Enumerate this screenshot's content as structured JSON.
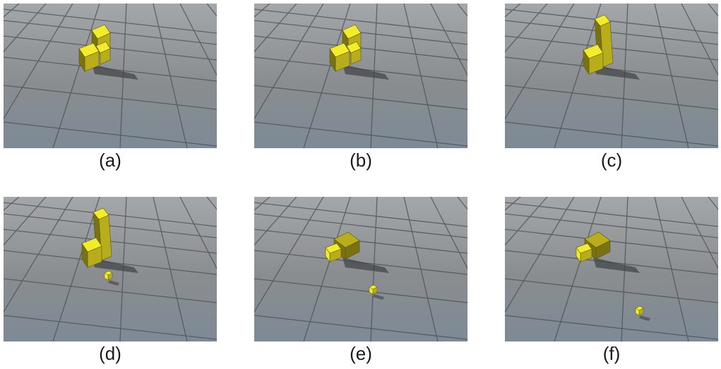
{
  "figure": {
    "panels": [
      {
        "label": "(a)",
        "has_small_cube": false,
        "pose": "upright-folded"
      },
      {
        "label": "(b)",
        "has_small_cube": false,
        "pose": "upright-folded"
      },
      {
        "label": "(c)",
        "has_small_cube": false,
        "pose": "tall-column"
      },
      {
        "label": "(d)",
        "has_small_cube": true,
        "pose": "tall-column"
      },
      {
        "label": "(e)",
        "has_small_cube": true,
        "pose": "lying-down"
      },
      {
        "label": "(f)",
        "has_small_cube": true,
        "pose": "lying-down"
      }
    ],
    "colors": {
      "floor": "#8a8d90",
      "tile_line": "#4a4d50",
      "block_top": "#f2ec2a",
      "block_side": "#b8ae1c",
      "block_dark": "#7a7212",
      "shadow": "#3e4144"
    }
  }
}
